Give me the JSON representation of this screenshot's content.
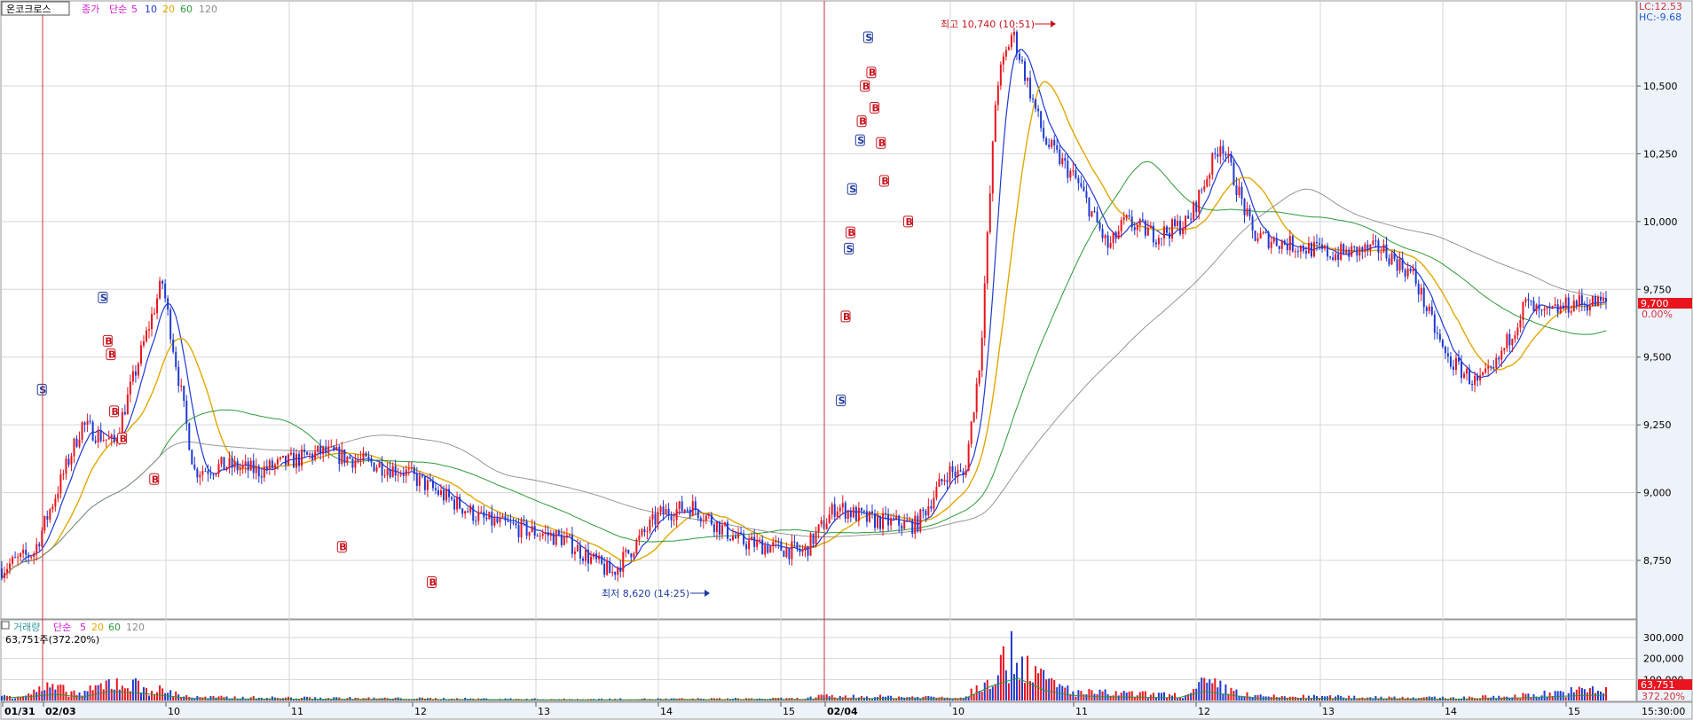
{
  "header": {
    "stock_name": "온코크로스",
    "price_label": "종가",
    "ma_type": "단순",
    "ma_periods": [
      "5",
      "10",
      "20",
      "60",
      "120"
    ],
    "ma_colors": [
      "#d21fd2",
      "#1f3ad2",
      "#e1a800",
      "#2d9a38",
      "#8c8c8c"
    ]
  },
  "volume_header": {
    "label": "거래량",
    "ma_type": "단순",
    "ma_periods": [
      "5",
      "20",
      "60",
      "120"
    ],
    "ma_colors": [
      "#d21fd2",
      "#e1a800",
      "#2d9a38",
      "#8c8c8c"
    ],
    "current_value": "63,751주(372.20%)"
  },
  "right_axis": {
    "lc": "LC:12.53",
    "hc": "HC:-9.68",
    "current_price": "9,700",
    "current_change": "0.00%",
    "volume_current": "63,751",
    "volume_ratio": "372.20%"
  },
  "annotations": {
    "high": "최고 10,740 (10:51)",
    "low": "최저 8,620 (14:25)"
  },
  "x_axis": {
    "labels": [
      "01/31",
      "02/03",
      "10",
      "11",
      "12",
      "13",
      "14",
      "15",
      "02/04",
      "10",
      "11",
      "12",
      "13",
      "14",
      "15"
    ],
    "time_end": "15:30:00"
  },
  "chart_data": {
    "type": "candlestick",
    "price_axis": {
      "ticks": [
        8750,
        9000,
        9250,
        9500,
        9750,
        10000,
        10250,
        10500
      ],
      "ylim": [
        8500,
        10800
      ]
    },
    "volume_axis": {
      "ticks": [
        "300,000",
        "200,000",
        "100,000"
      ],
      "ylim": [
        0,
        380000
      ]
    },
    "high": {
      "value": 10740,
      "time": "10:51"
    },
    "low": {
      "value": 8620,
      "time": "14:25"
    },
    "last_price": 9700,
    "trend": {
      "t": [
        0,
        0.02,
        0.05,
        0.07,
        0.1,
        0.12,
        0.14,
        0.16,
        0.2,
        0.25,
        0.3,
        0.35,
        0.38,
        0.41,
        0.43,
        0.46,
        0.5,
        0.52,
        0.54,
        0.57,
        0.59,
        0.6,
        0.61,
        0.62,
        0.63,
        0.65,
        0.67,
        0.69,
        0.7,
        0.72,
        0.74,
        0.76,
        0.78,
        0.8,
        0.83,
        0.86,
        0.88,
        0.9,
        0.92,
        0.93,
        0.95,
        0.96,
        0.98,
        1
      ],
      "price": [
        8720,
        8780,
        9250,
        9180,
        9780,
        9080,
        9100,
        9080,
        9150,
        9080,
        8900,
        8830,
        8700,
        8920,
        8950,
        8820,
        8780,
        8950,
        8900,
        8880,
        9080,
        9060,
        9500,
        10500,
        10700,
        10300,
        10150,
        9900,
        10000,
        9950,
        10000,
        10300,
        9950,
        9920,
        9880,
        9900,
        9800,
        9500,
        9400,
        9450,
        9700,
        9650,
        9700,
        9700
      ]
    },
    "volume": {
      "t": [
        0.01,
        0.03,
        0.05,
        0.07,
        0.12,
        0.2,
        0.35,
        0.5,
        0.51,
        0.6,
        0.62,
        0.63,
        0.64,
        0.65,
        0.67,
        0.74,
        0.75,
        0.78,
        0.87,
        0.9,
        0.94,
        0.99
      ],
      "value": [
        30000,
        80000,
        40000,
        120000,
        20000,
        15000,
        8000,
        12000,
        25000,
        20000,
        200000,
        280000,
        240000,
        120000,
        50000,
        30000,
        110000,
        25000,
        20000,
        15000,
        25000,
        63751
      ]
    }
  }
}
